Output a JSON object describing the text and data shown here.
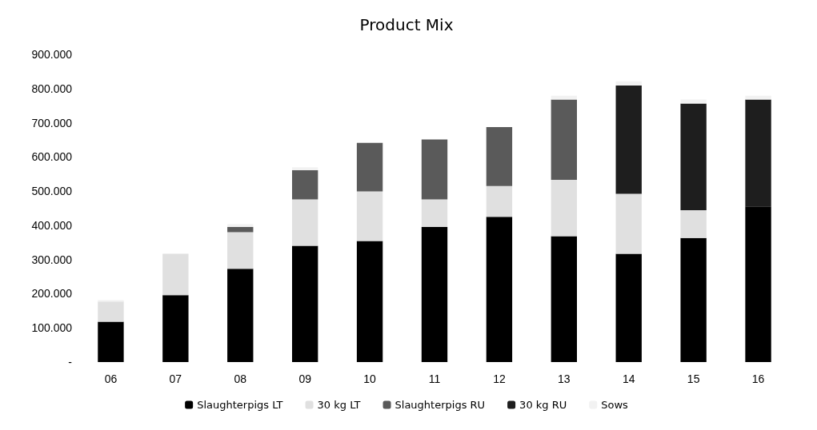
{
  "chart_data": {
    "type": "bar",
    "title": "Product Mix",
    "stacked": true,
    "categories": [
      "06",
      "07",
      "08",
      "09",
      "10",
      "11",
      "12",
      "13",
      "14",
      "15",
      "16"
    ],
    "series": [
      {
        "name": "Slaughterpigs LT",
        "color": "#000000",
        "values": [
          118,
          196,
          273,
          340,
          354,
          395,
          425,
          368,
          317,
          363,
          455
        ]
      },
      {
        "name": "30 kg LT",
        "color": "#e0e0e0",
        "values": [
          59,
          121,
          107,
          136,
          145,
          81,
          90,
          165,
          175,
          81,
          0
        ]
      },
      {
        "name": "Slaughterpigs RU",
        "color": "#5a5a5a",
        "values": [
          0,
          0,
          15,
          85,
          142,
          175,
          172,
          235,
          0,
          0,
          0
        ]
      },
      {
        "name": "30 kg RU",
        "color": "#1e1e1e",
        "values": [
          0,
          0,
          0,
          0,
          0,
          0,
          0,
          0,
          317,
          312,
          313
        ]
      },
      {
        "name": "Sows",
        "color": "#f2f2f2",
        "values": [
          4,
          0,
          8,
          9,
          0,
          0,
          0,
          11,
          12,
          12,
          11
        ]
      }
    ],
    "ylim": [
      0,
      900
    ],
    "yticks": [
      {
        "value": 0,
        "label": "-"
      },
      {
        "value": 100,
        "label": "100.000"
      },
      {
        "value": 200,
        "label": "200.000"
      },
      {
        "value": 300,
        "label": "300.000"
      },
      {
        "value": 400,
        "label": "400.000"
      },
      {
        "value": 500,
        "label": "500.000"
      },
      {
        "value": 600,
        "label": "600.000"
      },
      {
        "value": 700,
        "label": "700.000"
      },
      {
        "value": 800,
        "label": "800.000"
      },
      {
        "value": 900,
        "label": "900.000"
      }
    ],
    "grid": false,
    "legend": "bottom"
  }
}
